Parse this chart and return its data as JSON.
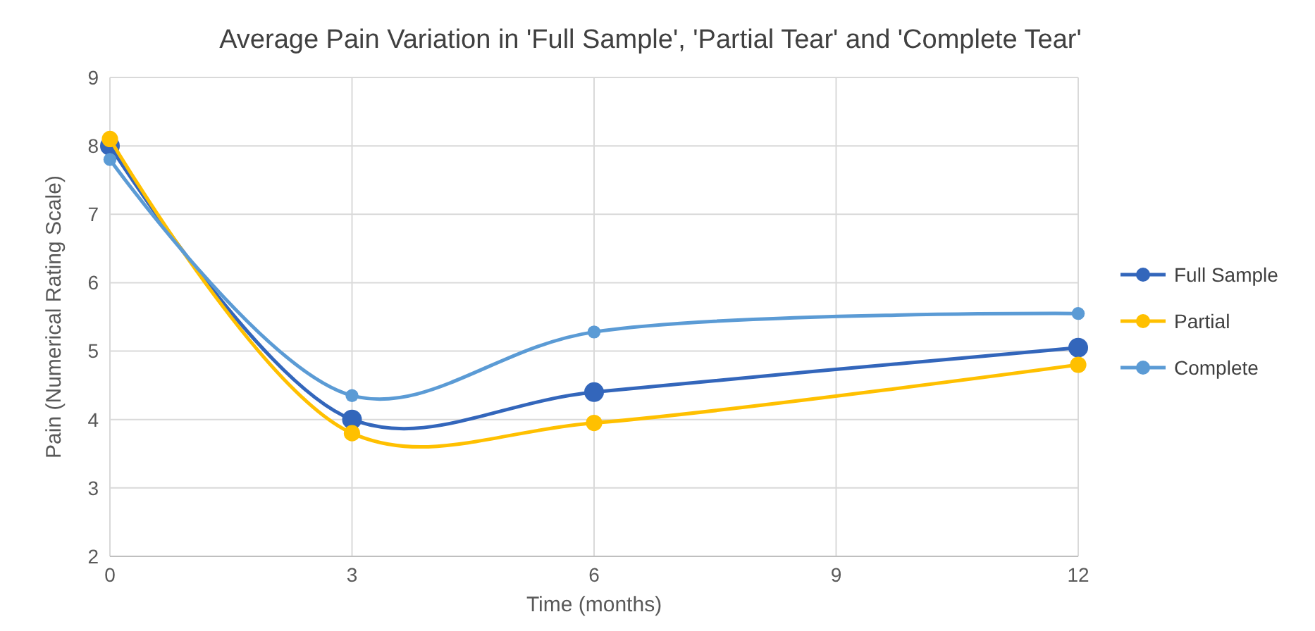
{
  "chart_data": {
    "type": "line",
    "title": "Average Pain Variation in 'Full Sample', 'Partial Tear' and 'Complete Tear'",
    "xlabel": "Time (months)",
    "ylabel": "Pain (Numerical Rating Scale)",
    "x": [
      0,
      3,
      6,
      12
    ],
    "series": [
      {
        "name": "Full Sample",
        "color": "#3366bb",
        "values": [
          8.0,
          4.0,
          4.4,
          5.05
        ]
      },
      {
        "name": "Partial",
        "color": "#ffc000",
        "values": [
          8.1,
          3.8,
          3.95,
          4.8
        ]
      },
      {
        "name": "Complete",
        "color": "#5b9bd5",
        "values": [
          7.8,
          4.35,
          5.28,
          5.55
        ]
      }
    ],
    "xlim": [
      0,
      12
    ],
    "xticks": [
      0,
      3,
      6,
      9,
      12
    ],
    "ylim": [
      2,
      9
    ],
    "yticks": [
      2,
      3,
      4,
      5,
      6,
      7,
      8,
      9
    ],
    "grid": true,
    "legend": "right",
    "marker": "circle",
    "line_style": "solid"
  }
}
